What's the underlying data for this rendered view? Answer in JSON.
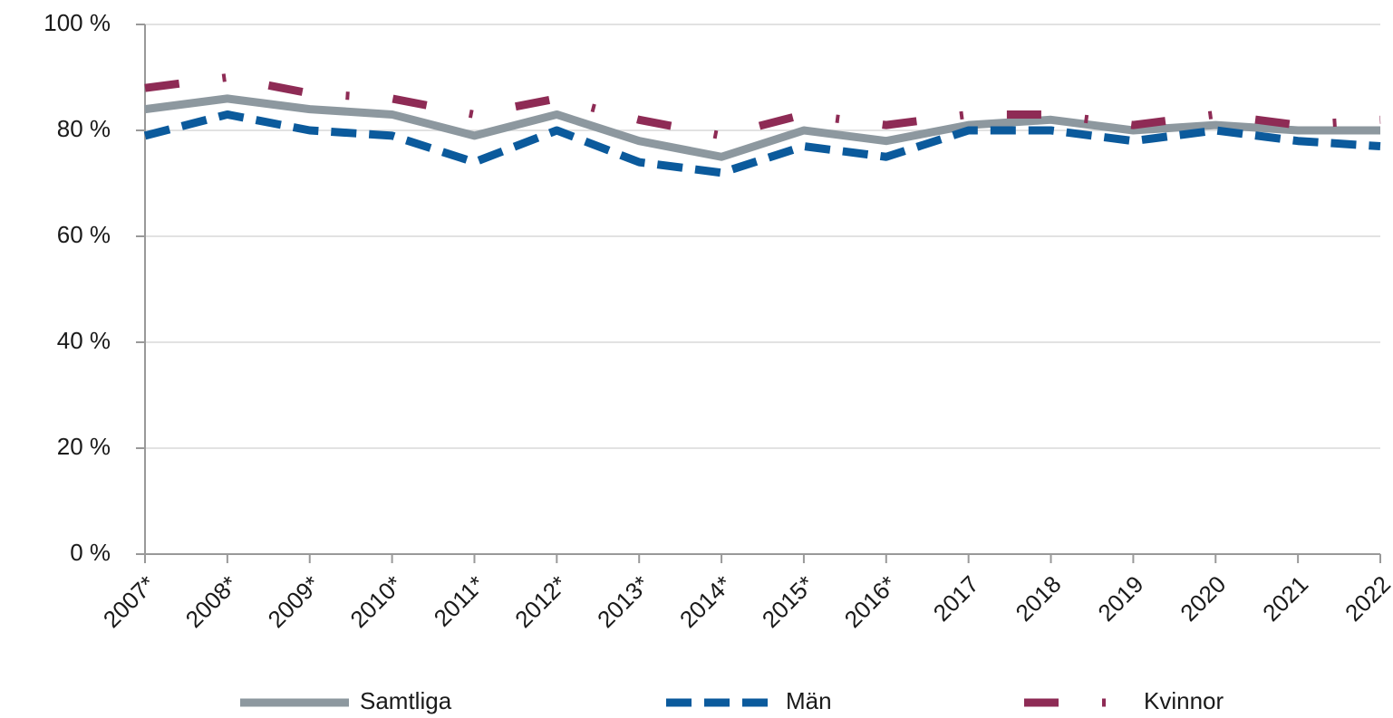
{
  "chart_data": {
    "type": "line",
    "categories": [
      "2007*",
      "2008*",
      "2009*",
      "2010*",
      "2011*",
      "2012*",
      "2013*",
      "2014*",
      "2015*",
      "2016*",
      "2017",
      "2018",
      "2019",
      "2020",
      "2021",
      "2022"
    ],
    "series": [
      {
        "name": "Samtliga",
        "color": "#8d989f",
        "dash": "solid",
        "values": [
          84,
          86,
          84,
          83,
          79,
          83,
          78,
          75,
          80,
          78,
          81,
          82,
          80,
          81,
          80,
          80
        ]
      },
      {
        "name": "Män",
        "color": "#0b5a9c",
        "dash": "dashed",
        "values": [
          79,
          83,
          80,
          79,
          74,
          80,
          74,
          72,
          77,
          75,
          80,
          80,
          78,
          80,
          78,
          77
        ]
      },
      {
        "name": "Kvinnor",
        "color": "#8e2b55",
        "dash": "dashdot",
        "values": [
          88,
          90,
          87,
          86,
          83,
          86,
          82,
          79,
          83,
          81,
          83,
          83,
          81,
          83,
          81,
          82
        ]
      }
    ],
    "ylim": [
      0,
      100
    ],
    "yticks": [
      {
        "value": 0,
        "label": "0 %"
      },
      {
        "value": 20,
        "label": "20 %"
      },
      {
        "value": 40,
        "label": "40 %"
      },
      {
        "value": 60,
        "label": "60 %"
      },
      {
        "value": 80,
        "label": "80 %"
      },
      {
        "value": 100,
        "label": "100 %"
      }
    ],
    "grid": true,
    "legend": "bottom"
  }
}
